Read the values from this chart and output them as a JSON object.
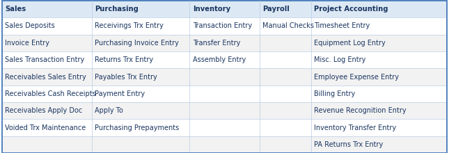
{
  "headers": [
    "Sales",
    "Purchasing",
    "Inventory",
    "Payroll",
    "Project Accounting"
  ],
  "rows": [
    [
      "Sales Deposits",
      "Receivings Trx Entry",
      "Transaction Entry",
      "Manual Checks",
      "Timesheet Entry"
    ],
    [
      "Invoice Entry",
      "Purchasing Invoice Entry",
      "Transfer Entry",
      "",
      "Equipment Log Entry"
    ],
    [
      "Sales Transaction Entry",
      "Returns Trx Entry",
      "Assembly Entry",
      "",
      "Misc. Log Entry"
    ],
    [
      "Receivables Sales Entry",
      "Payables Trx Entry",
      "",
      "",
      "Employee Expense Entry"
    ],
    [
      "Receivables Cash Receipts",
      "Payment Entry",
      "",
      "",
      "Billing Entry"
    ],
    [
      "Receivables Apply Doc",
      "Apply To",
      "",
      "",
      "Revenue Recognition Entry"
    ],
    [
      "Voided Trx Maintenance",
      "Purchasing Prepayments",
      "",
      "",
      "Inventory Transfer Entry"
    ],
    [
      "",
      "",
      "",
      "",
      "PA Returns Trx Entry"
    ]
  ],
  "col_starts": [
    0.004,
    0.204,
    0.422,
    0.578,
    0.693
  ],
  "header_bg": "#dce9f5",
  "row_bg_even": "#ffffff",
  "row_bg_odd": "#f2f2f2",
  "outer_border_color": "#4f81bd",
  "inner_border_color": "#b8cce4",
  "text_color": "#1a3560",
  "header_text_color": "#1a3560",
  "font_size": 7.0,
  "header_font_size": 7.2,
  "fig_width": 6.45,
  "fig_height": 2.2,
  "outer_border_lw": 1.4,
  "inner_border_lw": 0.5
}
